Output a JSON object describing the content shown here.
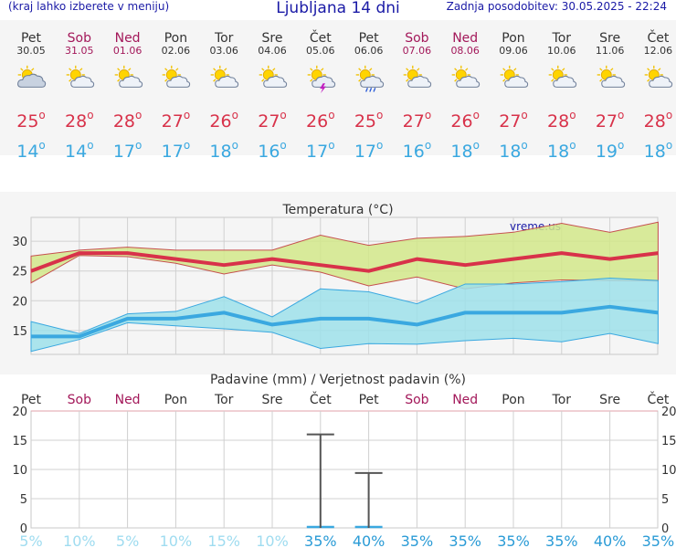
{
  "header": {
    "left_note": "(kraj lahko izberete v meniju)",
    "title": "Ljubljana 14 dni",
    "updated": "Zadnja posodobitev: 30.05.2025 - 22:24"
  },
  "days": [
    {
      "name": "Pet",
      "date": "30.05",
      "weekend": false,
      "icon": "partly-cloudy-icon",
      "tmax": "25",
      "tmin": "14"
    },
    {
      "name": "Sob",
      "date": "31.05",
      "weekend": true,
      "icon": "sun-cloud-icon",
      "tmax": "28",
      "tmin": "14"
    },
    {
      "name": "Ned",
      "date": "01.06",
      "weekend": true,
      "icon": "sun-cloud-icon",
      "tmax": "28",
      "tmin": "17"
    },
    {
      "name": "Pon",
      "date": "02.06",
      "weekend": false,
      "icon": "sun-cloud-icon",
      "tmax": "27",
      "tmin": "17"
    },
    {
      "name": "Tor",
      "date": "03.06",
      "weekend": false,
      "icon": "sun-cloud-icon",
      "tmax": "26",
      "tmin": "18"
    },
    {
      "name": "Sre",
      "date": "04.06",
      "weekend": false,
      "icon": "sun-cloud-icon",
      "tmax": "27",
      "tmin": "16"
    },
    {
      "name": "Čet",
      "date": "05.06",
      "weekend": false,
      "icon": "sun-storm-icon",
      "tmax": "26",
      "tmin": "17"
    },
    {
      "name": "Pet",
      "date": "06.06",
      "weekend": false,
      "icon": "sun-rain-icon",
      "tmax": "25",
      "tmin": "17"
    },
    {
      "name": "Sob",
      "date": "07.06",
      "weekend": true,
      "icon": "sun-cloud-icon",
      "tmax": "27",
      "tmin": "16"
    },
    {
      "name": "Ned",
      "date": "08.06",
      "weekend": true,
      "icon": "sun-cloud-icon",
      "tmax": "26",
      "tmin": "18"
    },
    {
      "name": "Pon",
      "date": "09.06",
      "weekend": false,
      "icon": "sun-cloud-icon",
      "tmax": "27",
      "tmin": "18"
    },
    {
      "name": "Tor",
      "date": "10.06",
      "weekend": false,
      "icon": "sun-cloud-icon",
      "tmax": "28",
      "tmin": "18"
    },
    {
      "name": "Sre",
      "date": "11.06",
      "weekend": false,
      "icon": "sun-cloud-icon",
      "tmax": "27",
      "tmin": "19"
    },
    {
      "name": "Čet",
      "date": "12.06",
      "weekend": false,
      "icon": "sun-cloud-icon",
      "tmax": "28",
      "tmin": "18"
    }
  ],
  "degree_symbol": "o",
  "colors": {
    "tmax": "#d8324a",
    "tmin": "#3aa8e0",
    "weekend": "#a3185a",
    "header": "#1a1aa6",
    "max_band": "#d2e88a",
    "min_band": "#9ee0ea"
  },
  "chart_data": [
    {
      "type": "line",
      "title": "Temperatura (°C)",
      "watermark": "vreme.us",
      "ylim": [
        11,
        34
      ],
      "yticks": [
        15,
        20,
        25,
        30
      ],
      "series": [
        {
          "values": [
            25,
            28,
            28,
            27,
            26,
            27,
            26,
            25,
            27,
            26,
            27,
            28,
            27,
            28
          ],
          "color": "#d8324a"
        },
        {
          "values": [
            14,
            14,
            17,
            17,
            18,
            16,
            17,
            17,
            16,
            18,
            18,
            18,
            19,
            18
          ],
          "color": "#3aa8e0"
        }
      ],
      "max_band": {
        "upper": [
          27.5,
          28.5,
          29,
          28.5,
          28.5,
          28.5,
          31,
          29.3,
          30.5,
          30.8,
          31.5,
          33,
          31.5,
          33.2
        ],
        "lower": [
          23,
          27.6,
          27.4,
          26.3,
          24.5,
          26,
          24.8,
          22.5,
          24,
          22,
          23,
          23.5,
          23.4,
          23.3
        ]
      },
      "min_band": {
        "upper": [
          16.5,
          14.5,
          17.8,
          18.2,
          20.7,
          17.3,
          22,
          21.5,
          19.5,
          22.8,
          22.8,
          23.2,
          23.8,
          23.4
        ],
        "lower": [
          11.5,
          13.5,
          16.3,
          15.8,
          15.3,
          14.7,
          12,
          12.8,
          12.7,
          13.3,
          13.7,
          13.1,
          14.5,
          12.8
        ]
      }
    },
    {
      "type": "bar",
      "title": "Padavine (mm) / Verjetnost padavin (%)",
      "categories": [
        "Pet",
        "Sob",
        "Ned",
        "Pon",
        "Tor",
        "Sre",
        "Čet",
        "Pet",
        "Sob",
        "Ned",
        "Pon",
        "Tor",
        "Sre",
        "Čet"
      ],
      "ylim": [
        0,
        20
      ],
      "yticks": [
        0,
        5,
        10,
        15,
        20
      ],
      "precip_mm": [
        0,
        0,
        0,
        0,
        0,
        0,
        0,
        0,
        0,
        0,
        0,
        0,
        0,
        0
      ],
      "precip_max": [
        0,
        0,
        0,
        0,
        0,
        0,
        16,
        9.4,
        0,
        0,
        0,
        0,
        0,
        0
      ],
      "probability_labels": [
        "5%",
        "10%",
        "5%",
        "10%",
        "15%",
        "10%",
        "35%",
        "40%",
        "35%",
        "35%",
        "35%",
        "35%",
        "40%",
        "35%"
      ]
    }
  ]
}
